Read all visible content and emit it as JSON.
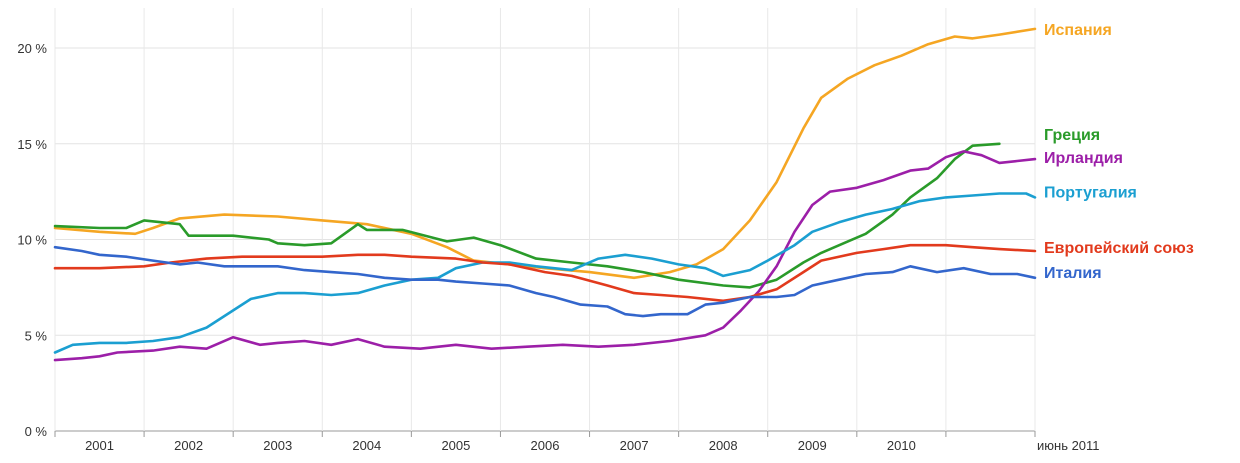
{
  "chart_data": {
    "type": "line",
    "title": "",
    "xlabel": "",
    "ylabel": "",
    "ylim": [
      0,
      22
    ],
    "xlim": [
      2000.5,
      2011.5
    ],
    "y_ticks": [
      {
        "value": 0,
        "label": "0 %"
      },
      {
        "value": 5,
        "label": "5 %"
      },
      {
        "value": 10,
        "label": "10 %"
      },
      {
        "value": 15,
        "label": "15 %"
      },
      {
        "value": 20,
        "label": "20 %"
      }
    ],
    "x_ticks": [
      {
        "value": 2001,
        "label": "2001"
      },
      {
        "value": 2002,
        "label": "2002"
      },
      {
        "value": 2003,
        "label": "2003"
      },
      {
        "value": 2004,
        "label": "2004"
      },
      {
        "value": 2005,
        "label": "2005"
      },
      {
        "value": 2006,
        "label": "2006"
      },
      {
        "value": 2007,
        "label": "2007"
      },
      {
        "value": 2008,
        "label": "2008"
      },
      {
        "value": 2009,
        "label": "2009"
      },
      {
        "value": 2010,
        "label": "2010"
      },
      {
        "value": 2011.5,
        "label": "июнь 2011"
      }
    ],
    "grid": true,
    "legend_placement": "right",
    "series": [
      {
        "name": "Испания",
        "color": "#f5a623",
        "points": [
          [
            2000.5,
            10.6
          ],
          [
            2001.0,
            10.4
          ],
          [
            2001.4,
            10.3
          ],
          [
            2001.6,
            10.6
          ],
          [
            2001.9,
            11.1
          ],
          [
            2002.4,
            11.3
          ],
          [
            2003.0,
            11.2
          ],
          [
            2003.5,
            11.0
          ],
          [
            2004.0,
            10.8
          ],
          [
            2004.5,
            10.3
          ],
          [
            2004.9,
            9.6
          ],
          [
            2005.2,
            8.9
          ],
          [
            2005.6,
            8.7
          ],
          [
            2006.0,
            8.5
          ],
          [
            2006.5,
            8.3
          ],
          [
            2007.0,
            8.0
          ],
          [
            2007.4,
            8.3
          ],
          [
            2007.7,
            8.7
          ],
          [
            2008.0,
            9.5
          ],
          [
            2008.3,
            11.0
          ],
          [
            2008.6,
            13.0
          ],
          [
            2008.9,
            15.8
          ],
          [
            2009.1,
            17.4
          ],
          [
            2009.4,
            18.4
          ],
          [
            2009.7,
            19.1
          ],
          [
            2010.0,
            19.6
          ],
          [
            2010.3,
            20.2
          ],
          [
            2010.6,
            20.6
          ],
          [
            2010.8,
            20.5
          ],
          [
            2011.1,
            20.7
          ],
          [
            2011.5,
            21.0
          ]
        ]
      },
      {
        "name": "Греция",
        "color": "#2a9b2a",
        "points": [
          [
            2000.5,
            10.7
          ],
          [
            2001.0,
            10.6
          ],
          [
            2001.3,
            10.6
          ],
          [
            2001.5,
            11.0
          ],
          [
            2001.9,
            10.8
          ],
          [
            2002.0,
            10.2
          ],
          [
            2002.5,
            10.2
          ],
          [
            2002.9,
            10.0
          ],
          [
            2003.0,
            9.8
          ],
          [
            2003.3,
            9.7
          ],
          [
            2003.6,
            9.8
          ],
          [
            2003.9,
            10.8
          ],
          [
            2004.0,
            10.5
          ],
          [
            2004.4,
            10.5
          ],
          [
            2004.9,
            9.9
          ],
          [
            2005.2,
            10.1
          ],
          [
            2005.5,
            9.7
          ],
          [
            2005.9,
            9.0
          ],
          [
            2006.3,
            8.8
          ],
          [
            2006.7,
            8.6
          ],
          [
            2007.1,
            8.3
          ],
          [
            2007.5,
            7.9
          ],
          [
            2008.0,
            7.6
          ],
          [
            2008.3,
            7.5
          ],
          [
            2008.6,
            7.9
          ],
          [
            2008.9,
            8.8
          ],
          [
            2009.1,
            9.3
          ],
          [
            2009.4,
            9.9
          ],
          [
            2009.6,
            10.3
          ],
          [
            2009.9,
            11.3
          ],
          [
            2010.1,
            12.2
          ],
          [
            2010.4,
            13.2
          ],
          [
            2010.6,
            14.2
          ],
          [
            2010.8,
            14.9
          ],
          [
            2011.1,
            15.0
          ]
        ]
      },
      {
        "name": "Ирландия",
        "color": "#9c1fa8",
        "points": [
          [
            2000.5,
            3.7
          ],
          [
            2000.8,
            3.8
          ],
          [
            2001.0,
            3.9
          ],
          [
            2001.2,
            4.1
          ],
          [
            2001.6,
            4.2
          ],
          [
            2001.9,
            4.4
          ],
          [
            2002.2,
            4.3
          ],
          [
            2002.5,
            4.9
          ],
          [
            2002.8,
            4.5
          ],
          [
            2003.0,
            4.6
          ],
          [
            2003.3,
            4.7
          ],
          [
            2003.6,
            4.5
          ],
          [
            2003.9,
            4.8
          ],
          [
            2004.2,
            4.4
          ],
          [
            2004.6,
            4.3
          ],
          [
            2005.0,
            4.5
          ],
          [
            2005.4,
            4.3
          ],
          [
            2005.8,
            4.4
          ],
          [
            2006.2,
            4.5
          ],
          [
            2006.6,
            4.4
          ],
          [
            2007.0,
            4.5
          ],
          [
            2007.4,
            4.7
          ],
          [
            2007.8,
            5.0
          ],
          [
            2008.0,
            5.4
          ],
          [
            2008.2,
            6.3
          ],
          [
            2008.4,
            7.3
          ],
          [
            2008.6,
            8.6
          ],
          [
            2008.8,
            10.4
          ],
          [
            2009.0,
            11.8
          ],
          [
            2009.2,
            12.5
          ],
          [
            2009.5,
            12.7
          ],
          [
            2009.8,
            13.1
          ],
          [
            2010.1,
            13.6
          ],
          [
            2010.3,
            13.7
          ],
          [
            2010.5,
            14.3
          ],
          [
            2010.7,
            14.6
          ],
          [
            2010.9,
            14.4
          ],
          [
            2011.1,
            14.0
          ],
          [
            2011.3,
            14.1
          ],
          [
            2011.5,
            14.2
          ]
        ]
      },
      {
        "name": "Португалия",
        "color": "#1b9fd1",
        "points": [
          [
            2000.5,
            4.1
          ],
          [
            2000.7,
            4.5
          ],
          [
            2001.0,
            4.6
          ],
          [
            2001.3,
            4.6
          ],
          [
            2001.6,
            4.7
          ],
          [
            2001.9,
            4.9
          ],
          [
            2002.2,
            5.4
          ],
          [
            2002.5,
            6.3
          ],
          [
            2002.7,
            6.9
          ],
          [
            2003.0,
            7.2
          ],
          [
            2003.3,
            7.2
          ],
          [
            2003.6,
            7.1
          ],
          [
            2003.9,
            7.2
          ],
          [
            2004.2,
            7.6
          ],
          [
            2004.5,
            7.9
          ],
          [
            2004.8,
            8.0
          ],
          [
            2005.0,
            8.5
          ],
          [
            2005.3,
            8.8
          ],
          [
            2005.6,
            8.8
          ],
          [
            2005.9,
            8.6
          ],
          [
            2006.1,
            8.5
          ],
          [
            2006.3,
            8.4
          ],
          [
            2006.6,
            9.0
          ],
          [
            2006.9,
            9.2
          ],
          [
            2007.2,
            9.0
          ],
          [
            2007.5,
            8.7
          ],
          [
            2007.8,
            8.5
          ],
          [
            2008.0,
            8.1
          ],
          [
            2008.3,
            8.4
          ],
          [
            2008.5,
            8.9
          ],
          [
            2008.8,
            9.7
          ],
          [
            2009.0,
            10.4
          ],
          [
            2009.3,
            10.9
          ],
          [
            2009.6,
            11.3
          ],
          [
            2009.9,
            11.6
          ],
          [
            2010.2,
            12.0
          ],
          [
            2010.5,
            12.2
          ],
          [
            2010.8,
            12.3
          ],
          [
            2011.1,
            12.4
          ],
          [
            2011.4,
            12.4
          ],
          [
            2011.5,
            12.2
          ]
        ]
      },
      {
        "name": "Европейский союз",
        "color": "#e23a1d",
        "points": [
          [
            2000.5,
            8.5
          ],
          [
            2001.0,
            8.5
          ],
          [
            2001.5,
            8.6
          ],
          [
            2001.8,
            8.8
          ],
          [
            2002.2,
            9.0
          ],
          [
            2002.6,
            9.1
          ],
          [
            2003.0,
            9.1
          ],
          [
            2003.5,
            9.1
          ],
          [
            2003.9,
            9.2
          ],
          [
            2004.2,
            9.2
          ],
          [
            2004.5,
            9.1
          ],
          [
            2005.0,
            9.0
          ],
          [
            2005.3,
            8.8
          ],
          [
            2005.6,
            8.7
          ],
          [
            2006.0,
            8.3
          ],
          [
            2006.3,
            8.1
          ],
          [
            2006.7,
            7.6
          ],
          [
            2007.0,
            7.2
          ],
          [
            2007.3,
            7.1
          ],
          [
            2007.6,
            7.0
          ],
          [
            2008.0,
            6.8
          ],
          [
            2008.3,
            7.0
          ],
          [
            2008.6,
            7.4
          ],
          [
            2008.9,
            8.3
          ],
          [
            2009.1,
            8.9
          ],
          [
            2009.5,
            9.3
          ],
          [
            2009.8,
            9.5
          ],
          [
            2010.1,
            9.7
          ],
          [
            2010.5,
            9.7
          ],
          [
            2010.8,
            9.6
          ],
          [
            2011.1,
            9.5
          ],
          [
            2011.5,
            9.4
          ]
        ]
      },
      {
        "name": "Италия",
        "color": "#3366cc",
        "points": [
          [
            2000.5,
            9.6
          ],
          [
            2000.8,
            9.4
          ],
          [
            2001.0,
            9.2
          ],
          [
            2001.3,
            9.1
          ],
          [
            2001.6,
            8.9
          ],
          [
            2001.9,
            8.7
          ],
          [
            2002.1,
            8.8
          ],
          [
            2002.4,
            8.6
          ],
          [
            2002.7,
            8.6
          ],
          [
            2003.0,
            8.6
          ],
          [
            2003.3,
            8.4
          ],
          [
            2003.6,
            8.3
          ],
          [
            2003.9,
            8.2
          ],
          [
            2004.2,
            8.0
          ],
          [
            2004.5,
            7.9
          ],
          [
            2004.8,
            7.9
          ],
          [
            2005.0,
            7.8
          ],
          [
            2005.3,
            7.7
          ],
          [
            2005.6,
            7.6
          ],
          [
            2005.9,
            7.2
          ],
          [
            2006.1,
            7.0
          ],
          [
            2006.4,
            6.6
          ],
          [
            2006.7,
            6.5
          ],
          [
            2006.9,
            6.1
          ],
          [
            2007.1,
            6.0
          ],
          [
            2007.3,
            6.1
          ],
          [
            2007.6,
            6.1
          ],
          [
            2007.8,
            6.6
          ],
          [
            2008.0,
            6.7
          ],
          [
            2008.3,
            7.0
          ],
          [
            2008.6,
            7.0
          ],
          [
            2008.8,
            7.1
          ],
          [
            2009.0,
            7.6
          ],
          [
            2009.3,
            7.9
          ],
          [
            2009.6,
            8.2
          ],
          [
            2009.9,
            8.3
          ],
          [
            2010.1,
            8.6
          ],
          [
            2010.4,
            8.3
          ],
          [
            2010.7,
            8.5
          ],
          [
            2011.0,
            8.2
          ],
          [
            2011.3,
            8.2
          ],
          [
            2011.5,
            8.0
          ]
        ]
      }
    ],
    "legend": [
      {
        "name": "Испания",
        "color": "#f5a623",
        "y": 21.0
      },
      {
        "name": "Греция",
        "color": "#2a9b2a",
        "y": 15.5
      },
      {
        "name": "Ирландия",
        "color": "#9c1fa8",
        "y": 14.3
      },
      {
        "name": "Португалия",
        "color": "#1b9fd1",
        "y": 12.5
      },
      {
        "name": "Европейский союз",
        "color": "#e23a1d",
        "y": 9.6
      },
      {
        "name": "Италия",
        "color": "#3366cc",
        "y": 8.3
      }
    ]
  }
}
